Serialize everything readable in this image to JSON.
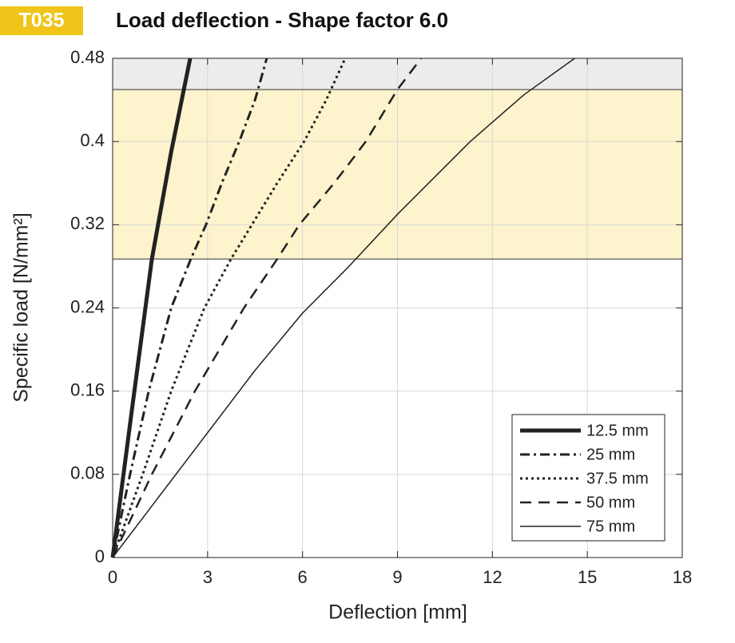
{
  "chart_data": {
    "type": "line",
    "badge": "T035",
    "title": "Load deflection - Shape factor 6.0",
    "x_label": "Deflection  [mm]",
    "y_label": "Specific load [N/mm²]",
    "xlim": [
      0,
      18
    ],
    "xticks": [
      0,
      3,
      6,
      9,
      12,
      15,
      18
    ],
    "ylim": [
      0,
      0.48
    ],
    "yticks": [
      0,
      0.08,
      0.16,
      0.24,
      0.32,
      0.4,
      0.48
    ],
    "grid": true,
    "legend": "lower right",
    "bands": [
      {
        "ymin": 0.45,
        "ymax": 0.48,
        "color": "#ececec"
      },
      {
        "ymin": 0.287,
        "ymax": 0.45,
        "color": "#fdf3cc"
      }
    ],
    "series": [
      {
        "name": "12.5 mm",
        "color": "#222222",
        "width": 5,
        "dash": "none",
        "x": [
          0,
          0.6,
          1.24,
          1.85,
          2.45
        ],
        "values": [
          0,
          0.14,
          0.287,
          0.39,
          0.48
        ]
      },
      {
        "name": "25 mm",
        "color": "#222222",
        "width": 3,
        "dash": "12,5,3,5",
        "x": [
          0,
          0.55,
          1.14,
          1.85,
          2.47,
          2.95,
          3.45,
          4.0,
          4.5,
          4.87
        ],
        "values": [
          0,
          0.08,
          0.16,
          0.24,
          0.287,
          0.32,
          0.36,
          0.4,
          0.44,
          0.48
        ]
      },
      {
        "name": "37.5 mm",
        "color": "#222222",
        "width": 3,
        "dash": "3,4",
        "x": [
          0,
          0.95,
          1.85,
          2.9,
          3.74,
          4.4,
          5.2,
          6.05,
          6.75,
          7.35
        ],
        "values": [
          0,
          0.08,
          0.16,
          0.24,
          0.287,
          0.32,
          0.36,
          0.4,
          0.44,
          0.48
        ]
      },
      {
        "name": "50 mm",
        "color": "#222222",
        "width": 2.5,
        "dash": "14,9",
        "x": [
          0,
          1.24,
          2.6,
          4.15,
          5.2,
          5.9,
          7.0,
          8.0,
          9.0,
          9.75
        ],
        "values": [
          0,
          0.08,
          0.16,
          0.24,
          0.287,
          0.32,
          0.36,
          0.4,
          0.45,
          0.48
        ]
      },
      {
        "name": "75 mm",
        "color": "#222222",
        "width": 1.5,
        "dash": "none",
        "x": [
          0,
          1.5,
          3,
          4.5,
          6,
          7.47,
          9,
          11.3,
          13.0,
          14.6
        ],
        "values": [
          0,
          0.06,
          0.12,
          0.18,
          0.235,
          0.28,
          0.33,
          0.4,
          0.445,
          0.48
        ]
      }
    ]
  }
}
